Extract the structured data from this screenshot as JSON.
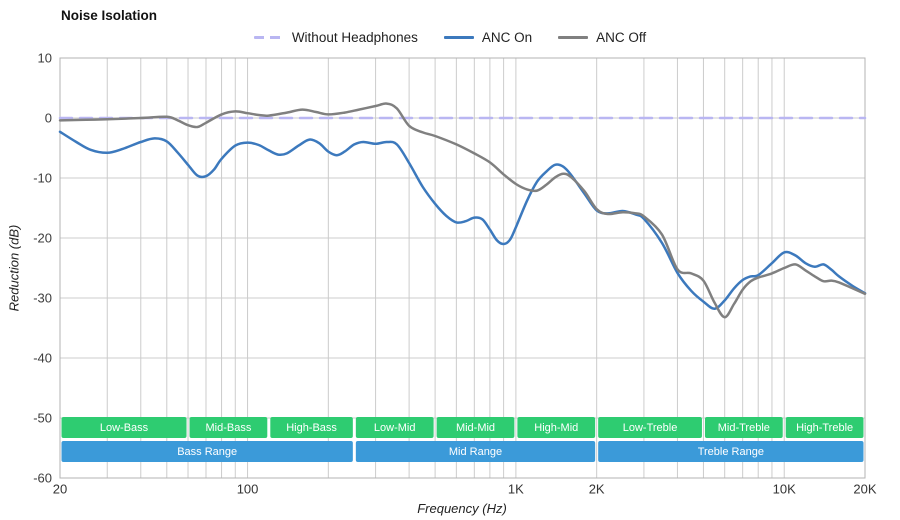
{
  "chart_data": {
    "type": "line",
    "title": "Noise Isolation",
    "xlabel": "Frequency (Hz)",
    "ylabel": "Reduction (dB)",
    "x_scale": "log",
    "xlim": [
      20,
      20000
    ],
    "ylim": [
      -60,
      10
    ],
    "y_ticks": [
      10,
      0,
      -10,
      -20,
      -30,
      -40,
      -50,
      -60
    ],
    "x_ticks": [
      {
        "value": 20,
        "label": "20"
      },
      {
        "value": 100,
        "label": "100"
      },
      {
        "value": 1000,
        "label": "1K"
      },
      {
        "value": 2000,
        "label": "2K"
      },
      {
        "value": 10000,
        "label": "10K"
      },
      {
        "value": 20000,
        "label": "20K"
      }
    ],
    "x_gridlines": [
      20,
      30,
      40,
      50,
      60,
      70,
      80,
      90,
      100,
      200,
      300,
      400,
      500,
      600,
      700,
      800,
      900,
      1000,
      2000,
      3000,
      4000,
      5000,
      6000,
      7000,
      8000,
      9000,
      10000,
      20000
    ],
    "grid_color": "#cccccc",
    "border_color": "#b3b3b3",
    "series": [
      {
        "name": "Without Headphones",
        "color": "#b9b6f2",
        "dashed": true,
        "points": [
          [
            20,
            0
          ],
          [
            20000,
            0
          ]
        ]
      },
      {
        "name": "ANC On",
        "color": "#3c79bd",
        "dashed": false,
        "points": [
          [
            20,
            -2.3
          ],
          [
            23,
            -4.0
          ],
          [
            26,
            -5.3
          ],
          [
            30,
            -5.8
          ],
          [
            34,
            -5.2
          ],
          [
            40,
            -4.0
          ],
          [
            45,
            -3.4
          ],
          [
            50,
            -3.9
          ],
          [
            55,
            -5.8
          ],
          [
            60,
            -7.8
          ],
          [
            65,
            -9.6
          ],
          [
            70,
            -9.7
          ],
          [
            75,
            -8.6
          ],
          [
            80,
            -6.8
          ],
          [
            90,
            -4.6
          ],
          [
            100,
            -4.1
          ],
          [
            110,
            -4.5
          ],
          [
            120,
            -5.4
          ],
          [
            130,
            -6.1
          ],
          [
            140,
            -5.9
          ],
          [
            155,
            -4.6
          ],
          [
            170,
            -3.6
          ],
          [
            185,
            -4.2
          ],
          [
            200,
            -5.6
          ],
          [
            215,
            -6.2
          ],
          [
            230,
            -5.6
          ],
          [
            250,
            -4.4
          ],
          [
            270,
            -4.0
          ],
          [
            300,
            -4.3
          ],
          [
            330,
            -4.0
          ],
          [
            360,
            -4.4
          ],
          [
            400,
            -7.5
          ],
          [
            450,
            -11.5
          ],
          [
            500,
            -14.3
          ],
          [
            550,
            -16.3
          ],
          [
            600,
            -17.4
          ],
          [
            650,
            -17.2
          ],
          [
            700,
            -16.6
          ],
          [
            750,
            -16.9
          ],
          [
            800,
            -18.6
          ],
          [
            850,
            -20.4
          ],
          [
            900,
            -21.0
          ],
          [
            950,
            -20.3
          ],
          [
            1000,
            -18.2
          ],
          [
            1100,
            -13.8
          ],
          [
            1200,
            -10.6
          ],
          [
            1300,
            -8.9
          ],
          [
            1400,
            -7.8
          ],
          [
            1500,
            -8.1
          ],
          [
            1600,
            -9.4
          ],
          [
            1800,
            -12.6
          ],
          [
            2000,
            -15.4
          ],
          [
            2200,
            -15.9
          ],
          [
            2500,
            -15.5
          ],
          [
            2800,
            -16.1
          ],
          [
            3000,
            -16.8
          ],
          [
            3500,
            -20.8
          ],
          [
            4000,
            -25.8
          ],
          [
            4500,
            -28.8
          ],
          [
            5000,
            -30.6
          ],
          [
            5500,
            -31.8
          ],
          [
            6000,
            -30.4
          ],
          [
            6500,
            -28.4
          ],
          [
            7000,
            -27.0
          ],
          [
            7500,
            -26.4
          ],
          [
            8000,
            -26.2
          ],
          [
            9000,
            -24.2
          ],
          [
            10000,
            -22.4
          ],
          [
            11000,
            -22.9
          ],
          [
            12000,
            -24.2
          ],
          [
            13000,
            -24.8
          ],
          [
            14000,
            -24.4
          ],
          [
            15000,
            -25.3
          ],
          [
            16000,
            -26.4
          ],
          [
            18000,
            -28.0
          ],
          [
            20000,
            -29.2
          ]
        ]
      },
      {
        "name": "ANC Off",
        "color": "#808080",
        "dashed": false,
        "points": [
          [
            20,
            -0.4
          ],
          [
            25,
            -0.3
          ],
          [
            30,
            -0.2
          ],
          [
            40,
            0.0
          ],
          [
            50,
            0.2
          ],
          [
            55,
            -0.4
          ],
          [
            60,
            -1.2
          ],
          [
            65,
            -1.5
          ],
          [
            70,
            -0.8
          ],
          [
            80,
            0.6
          ],
          [
            90,
            1.1
          ],
          [
            100,
            0.8
          ],
          [
            110,
            0.5
          ],
          [
            120,
            0.4
          ],
          [
            140,
            0.9
          ],
          [
            160,
            1.4
          ],
          [
            180,
            1.0
          ],
          [
            200,
            0.6
          ],
          [
            230,
            0.9
          ],
          [
            260,
            1.4
          ],
          [
            300,
            2.0
          ],
          [
            330,
            2.4
          ],
          [
            360,
            1.6
          ],
          [
            400,
            -1.3
          ],
          [
            450,
            -2.4
          ],
          [
            500,
            -3.0
          ],
          [
            600,
            -4.4
          ],
          [
            700,
            -5.9
          ],
          [
            800,
            -7.4
          ],
          [
            900,
            -9.4
          ],
          [
            1000,
            -11.0
          ],
          [
            1100,
            -11.9
          ],
          [
            1200,
            -12.1
          ],
          [
            1300,
            -11.1
          ],
          [
            1400,
            -9.9
          ],
          [
            1500,
            -9.3
          ],
          [
            1600,
            -9.8
          ],
          [
            1800,
            -12.2
          ],
          [
            2000,
            -15.2
          ],
          [
            2200,
            -16.0
          ],
          [
            2500,
            -15.7
          ],
          [
            2800,
            -15.9
          ],
          [
            3000,
            -16.4
          ],
          [
            3500,
            -19.4
          ],
          [
            4000,
            -25.2
          ],
          [
            4500,
            -25.9
          ],
          [
            5000,
            -27.1
          ],
          [
            5500,
            -30.8
          ],
          [
            6000,
            -33.2
          ],
          [
            6500,
            -31.0
          ],
          [
            7000,
            -28.6
          ],
          [
            7500,
            -27.2
          ],
          [
            8000,
            -26.6
          ],
          [
            9000,
            -25.9
          ],
          [
            10000,
            -25.0
          ],
          [
            11000,
            -24.4
          ],
          [
            12000,
            -25.4
          ],
          [
            13000,
            -26.4
          ],
          [
            14000,
            -27.2
          ],
          [
            15000,
            -27.1
          ],
          [
            16000,
            -27.4
          ],
          [
            18000,
            -28.4
          ],
          [
            20000,
            -29.3
          ]
        ]
      }
    ],
    "bands": {
      "sub_color": "#2ecc71",
      "main_color": "#3b9ad9",
      "label_color": "#ffffff",
      "sub": [
        {
          "label": "Low-Bass",
          "from": 20,
          "to": 60
        },
        {
          "label": "Mid-Bass",
          "from": 60,
          "to": 120
        },
        {
          "label": "High-Bass",
          "from": 120,
          "to": 250
        },
        {
          "label": "Low-Mid",
          "from": 250,
          "to": 500
        },
        {
          "label": "Mid-Mid",
          "from": 500,
          "to": 1000
        },
        {
          "label": "High-Mid",
          "from": 1000,
          "to": 2000
        },
        {
          "label": "Low-Treble",
          "from": 2000,
          "to": 5000
        },
        {
          "label": "Mid-Treble",
          "from": 5000,
          "to": 10000
        },
        {
          "label": "High-Treble",
          "from": 10000,
          "to": 20000
        }
      ],
      "main": [
        {
          "label": "Bass Range",
          "from": 20,
          "to": 250
        },
        {
          "label": "Mid Range",
          "from": 250,
          "to": 2000
        },
        {
          "label": "Treble Range",
          "from": 2000,
          "to": 20000
        }
      ]
    }
  }
}
